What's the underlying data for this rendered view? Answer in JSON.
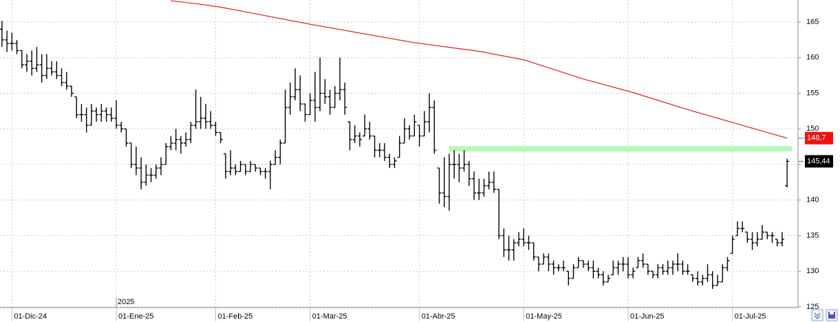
{
  "chart_data": {
    "type": "ohlc",
    "xlim": [
      -0.4,
      160.2
    ],
    "ylim": [
      124.9,
      168.1
    ],
    "grid": true,
    "xticks": [
      {
        "value": 2,
        "label": "01-Dic-24"
      },
      {
        "value": 23,
        "label": "01-Ene-25"
      },
      {
        "value": 43,
        "label": "01-Feb-25"
      },
      {
        "value": 62,
        "label": "01-Mar-25"
      },
      {
        "value": 84,
        "label": "01-Abr-25"
      },
      {
        "value": 105,
        "label": "01-May-25"
      },
      {
        "value": 126,
        "label": "01-Jun-25"
      },
      {
        "value": 147,
        "label": "01-Jul-25"
      }
    ],
    "yticks": [
      125,
      130,
      135,
      140,
      145,
      150,
      155,
      160,
      165
    ],
    "year_marker": {
      "x": 23,
      "label": "2025"
    },
    "ohlc": {
      "color": "#000000",
      "x": [
        0,
        1,
        2,
        3,
        4,
        5,
        6,
        7,
        8,
        9,
        10,
        11,
        12,
        13,
        14,
        15,
        16,
        17,
        18,
        19,
        20,
        21,
        22,
        23,
        24,
        25,
        26,
        27,
        28,
        29,
        30,
        31,
        32,
        33,
        34,
        35,
        36,
        37,
        38,
        39,
        40,
        41,
        42,
        43,
        44,
        45,
        46,
        47,
        48,
        49,
        50,
        51,
        52,
        53,
        54,
        55,
        56,
        57,
        58,
        59,
        60,
        61,
        62,
        63,
        64,
        65,
        66,
        67,
        68,
        69,
        70,
        71,
        72,
        73,
        74,
        75,
        76,
        77,
        78,
        79,
        80,
        81,
        82,
        83,
        84,
        85,
        86,
        87,
        88,
        89,
        90,
        91,
        92,
        93,
        94,
        95,
        96,
        97,
        98,
        99,
        100,
        101,
        102,
        103,
        104,
        105,
        106,
        107,
        108,
        109,
        110,
        111,
        112,
        113,
        114,
        115,
        116,
        117,
        118,
        119,
        120,
        121,
        122,
        123,
        124,
        125,
        126,
        127,
        128,
        129,
        130,
        131,
        132,
        133,
        134,
        135,
        136,
        137,
        138,
        139,
        140,
        141,
        142,
        143,
        144,
        145,
        146,
        147,
        148,
        149,
        150,
        151,
        152,
        153,
        154,
        155,
        156,
        157,
        158
      ],
      "open": [
        164,
        162.5,
        162,
        162,
        161,
        159,
        159.5,
        158.5,
        159,
        157.5,
        158.5,
        158,
        157.5,
        156.5,
        156,
        154.5,
        152,
        152,
        150.5,
        152.5,
        152,
        152.5,
        152,
        151.5,
        150.5,
        150,
        148,
        145,
        144.5,
        142.5,
        143.5,
        143.5,
        144.5,
        145,
        147.5,
        148,
        148.5,
        148,
        148.5,
        150.5,
        151,
        151.5,
        151,
        150.5,
        149.5,
        146.5,
        144,
        144.5,
        144,
        145,
        144,
        145,
        144.5,
        144,
        144,
        145,
        146,
        148,
        153,
        154.5,
        155.5,
        153.5,
        152,
        154,
        153,
        155,
        154.5,
        153,
        155,
        155.5,
        151,
        148.5,
        149,
        149,
        150,
        149,
        147,
        147,
        146,
        145,
        146,
        148,
        150,
        149,
        150.5,
        149,
        151,
        153,
        144.5,
        141,
        140.5,
        145,
        145,
        144.5,
        145,
        143,
        141,
        141,
        142,
        142.5,
        141.5,
        135,
        133,
        133,
        134,
        134.5,
        134,
        134,
        132,
        131,
        132,
        131,
        130.5,
        130.5,
        130,
        129,
        130.5,
        131.5,
        131,
        130.5,
        130,
        129.5,
        128.5,
        129.5,
        130.5,
        131,
        131,
        129.5,
        130.5,
        131.5,
        131,
        130,
        129.5,
        130.5,
        130,
        130.5,
        131,
        131,
        130,
        129.5,
        129,
        128.5,
        129,
        129.5,
        128,
        128.5,
        130.5,
        132.5,
        135,
        136,
        135.5,
        134.5,
        134,
        134.5,
        135.5,
        135,
        134.5,
        134,
        142
      ],
      "high": [
        165.2,
        163.8,
        163.5,
        162.5,
        161,
        160.5,
        161,
        161.5,
        160.5,
        160.5,
        159.5,
        159.5,
        158.5,
        158,
        156,
        154.5,
        153.5,
        153,
        153.5,
        153,
        153.5,
        153,
        153,
        154,
        151,
        150,
        148,
        147.5,
        146,
        145,
        144.5,
        145,
        146,
        148,
        149,
        150,
        149,
        149.5,
        151,
        155.5,
        154.5,
        153.5,
        152.5,
        151,
        149.5,
        146.5,
        147,
        145,
        145.5,
        145,
        145.5,
        145,
        144.5,
        144.5,
        145.5,
        147,
        148.5,
        155.5,
        156.5,
        158.5,
        157.5,
        153.5,
        155,
        158,
        160,
        157,
        155.5,
        156,
        160,
        156.5,
        151,
        150.5,
        149.5,
        152,
        151,
        149,
        148,
        148,
        146.5,
        146,
        149,
        151.5,
        150.5,
        152,
        150.5,
        152.5,
        155,
        154,
        144.5,
        146,
        146.5,
        147,
        146.5,
        147,
        145.5,
        144,
        143,
        143,
        144,
        144,
        141.5,
        136,
        135,
        134.5,
        135.5,
        136,
        135,
        134,
        132,
        132.5,
        132.5,
        131.5,
        131,
        131.5,
        130,
        131,
        132,
        131.5,
        131.5,
        131.5,
        130.5,
        130,
        129.5,
        131.5,
        131.5,
        132,
        132,
        130.5,
        132,
        132.5,
        131,
        130,
        131,
        131,
        131.5,
        131.5,
        132.5,
        131.5,
        131,
        129.5,
        130,
        129.5,
        131,
        130,
        129.5,
        131,
        132,
        135,
        137,
        137,
        135.5,
        135.5,
        135.5,
        136.5,
        135.5,
        135.5,
        134.5,
        135.5,
        145.8
      ],
      "low": [
        161.5,
        160.8,
        161,
        160.5,
        158.5,
        158,
        157.5,
        158,
        156.5,
        157,
        157.5,
        157,
        156,
        155.5,
        154.5,
        151.5,
        151,
        149.5,
        150.5,
        151,
        151,
        151,
        151,
        150,
        149.5,
        147.5,
        144.5,
        143.5,
        141.5,
        142,
        142.5,
        143,
        143.5,
        145,
        147,
        147,
        146.5,
        147.5,
        148,
        150,
        150,
        150,
        150,
        149,
        148,
        143,
        143.5,
        143.5,
        144,
        143.5,
        144,
        144,
        143.5,
        143,
        141.5,
        145,
        145,
        148,
        152,
        154,
        152.5,
        151,
        152,
        151,
        152.5,
        153.5,
        152,
        153,
        154,
        152,
        147,
        148,
        147.5,
        149,
        148.5,
        146,
        146,
        145.5,
        144.5,
        144.5,
        146,
        148,
        148.5,
        149,
        147.5,
        149,
        149.5,
        146.5,
        139.5,
        139,
        138.5,
        143,
        142.5,
        144,
        142,
        140,
        140,
        140.5,
        141.5,
        141,
        134.5,
        132,
        131.5,
        131.5,
        133.5,
        133.5,
        133,
        131.5,
        130,
        131,
        130,
        129.5,
        130,
        130,
        128,
        129,
        130.5,
        130.5,
        130,
        129,
        129,
        128,
        128.5,
        129.5,
        129.5,
        130,
        129,
        129,
        130.5,
        130.5,
        129.5,
        129,
        129,
        129.5,
        129.5,
        129.5,
        130,
        129.5,
        129.5,
        128.5,
        128,
        128,
        128.5,
        127.5,
        128,
        128.5,
        130,
        132.5,
        135,
        135.5,
        134,
        133,
        133.5,
        134.5,
        134.5,
        134,
        133.5,
        133.5,
        141.8
      ],
      "close": [
        162.5,
        162,
        162,
        161,
        159,
        159.5,
        158.5,
        159,
        157.5,
        158.5,
        158,
        157.5,
        156.5,
        156,
        155,
        152,
        152,
        150.5,
        152.5,
        152,
        152.5,
        152,
        151.5,
        150.5,
        150,
        148,
        145,
        144.5,
        142.5,
        143.5,
        143.5,
        144.5,
        145,
        147.5,
        148,
        148.5,
        148,
        148.5,
        150.5,
        151,
        151.5,
        151,
        150.5,
        149.5,
        148.5,
        144,
        144.5,
        144,
        145,
        144,
        145,
        144.5,
        144,
        144,
        145,
        146,
        148,
        153,
        154.5,
        155.5,
        153.5,
        152,
        154,
        153,
        155,
        154.5,
        153,
        155,
        155.5,
        153,
        148.5,
        149,
        148.5,
        150,
        149,
        147,
        147,
        146,
        145,
        145.5,
        148,
        150,
        149,
        151,
        149,
        151,
        153,
        147,
        141,
        140.5,
        145,
        145,
        144.5,
        145,
        143,
        141,
        141,
        142,
        142.5,
        141.5,
        135,
        133,
        133,
        134,
        134.5,
        134,
        134,
        132,
        131,
        132,
        131,
        130.5,
        130.5,
        130.5,
        129,
        130.5,
        131.5,
        131,
        130.5,
        130,
        129.5,
        128.5,
        129,
        130.5,
        131,
        131,
        129.5,
        130,
        131.5,
        131,
        130,
        129.5,
        130.5,
        130,
        130.5,
        131,
        131,
        130,
        130,
        129,
        128.5,
        129,
        129.5,
        128,
        128.5,
        130.5,
        131.5,
        134.5,
        136,
        136,
        134.5,
        134,
        134.5,
        135.5,
        135,
        135,
        134,
        134.5,
        145.44
      ],
      "value_labels": [
        null,
        null,
        null,
        null,
        null,
        null,
        null,
        null,
        null,
        null,
        null,
        null,
        null,
        null,
        null,
        null,
        null,
        null,
        null,
        null,
        null,
        null,
        null,
        null,
        null,
        null,
        null,
        null,
        null,
        null,
        null,
        null,
        null,
        null,
        null,
        null,
        null,
        null,
        null,
        null,
        null,
        null,
        null,
        null,
        null,
        null,
        null,
        null,
        null,
        null,
        null,
        null,
        null,
        null,
        null,
        null,
        null,
        null,
        null,
        null,
        null,
        null,
        null,
        null,
        null,
        null,
        null,
        null,
        null,
        null,
        null,
        null,
        null,
        null,
        null,
        null,
        null,
        null,
        null,
        null,
        null,
        null,
        null,
        null,
        null,
        null,
        null,
        null,
        null,
        null,
        null,
        null,
        null,
        null,
        null,
        null,
        null,
        null,
        null,
        null,
        null,
        null,
        null,
        null,
        null,
        null,
        null,
        null,
        null,
        null,
        null,
        null,
        null,
        null,
        null,
        null,
        null,
        null,
        null,
        null,
        null,
        null,
        null,
        null,
        null,
        null,
        null,
        null,
        null,
        null,
        null,
        null,
        null,
        null,
        null,
        null,
        null,
        null,
        null,
        null,
        null,
        null,
        null,
        null,
        null,
        null,
        null,
        null,
        null,
        null,
        null,
        null,
        null,
        null,
        null,
        null,
        null,
        null,
        "145,44"
      ],
      "label_color": "#000000"
    },
    "moving_average": {
      "color": "#d42020",
      "x": [
        34,
        40,
        44,
        62,
        83,
        96,
        105,
        117,
        127,
        138,
        148,
        158
      ],
      "values": [
        168.0,
        167.5,
        167.1,
        164.7,
        162.1,
        160.9,
        159.7,
        157.0,
        155.1,
        152.7,
        150.7,
        148.7
      ],
      "value_labels": [
        null,
        null,
        null,
        null,
        null,
        null,
        null,
        null,
        null,
        null,
        null,
        "148,7"
      ],
      "label_color": "#ee1111"
    },
    "level": {
      "value": 147.2,
      "x": [
        90,
        159
      ],
      "color": "#b8f7b8"
    }
  }
}
